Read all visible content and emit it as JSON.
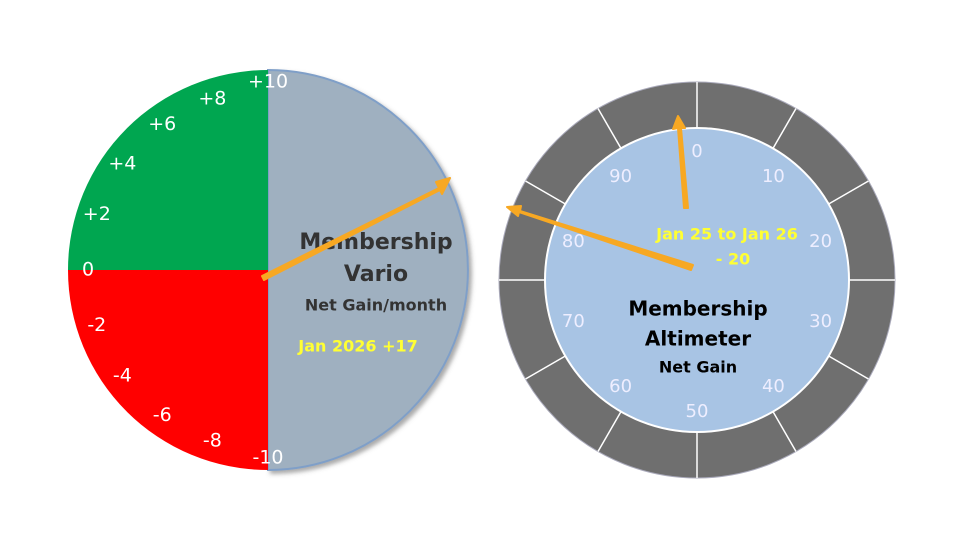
{
  "vario": {
    "title": "Membership",
    "subtitle": "Vario",
    "caption": "Net Gain/month",
    "reading": "Jan 2026  +17",
    "scale": [
      "+10",
      "+8",
      "+6",
      "+4",
      "+2",
      "0",
      "-2",
      "-4",
      "-6",
      "-8",
      "-10"
    ]
  },
  "altimeter": {
    "title": "Membership",
    "subtitle": "Altimeter",
    "caption": "Net Gain",
    "period": "Jan 25 to Jan 26",
    "reading": "- 20",
    "scale": [
      "0",
      "10",
      "20",
      "30",
      "40",
      "50",
      "60",
      "70",
      "80",
      "90"
    ]
  }
}
